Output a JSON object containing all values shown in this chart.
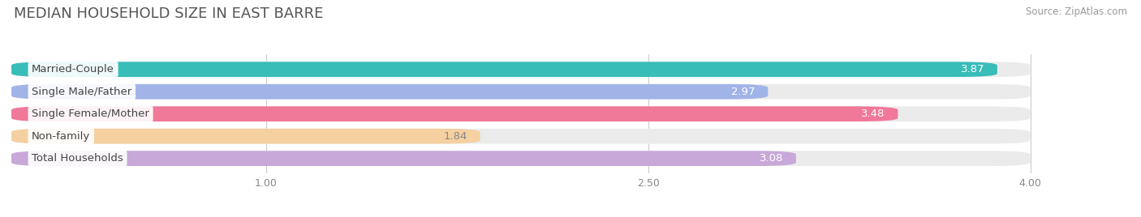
{
  "title": "MEDIAN HOUSEHOLD SIZE IN EAST BARRE",
  "source": "Source: ZipAtlas.com",
  "categories": [
    "Married-Couple",
    "Single Male/Father",
    "Single Female/Mother",
    "Non-family",
    "Total Households"
  ],
  "values": [
    3.87,
    2.97,
    3.48,
    1.84,
    3.08
  ],
  "bar_colors": [
    "#38bdb8",
    "#a0b4e8",
    "#f07898",
    "#f5d0a0",
    "#c8a8d8"
  ],
  "label_colors": [
    "white",
    "white",
    "white",
    "white",
    "white"
  ],
  "value_label_dark": [
    false,
    false,
    false,
    true,
    false
  ],
  "xlim": [
    0,
    4.3
  ],
  "xmin": 0,
  "xmax": 4.0,
  "xticks": [
    1.0,
    2.5,
    4.0
  ],
  "title_fontsize": 13,
  "source_fontsize": 8.5,
  "bar_label_fontsize": 9.5,
  "category_label_fontsize": 9.5,
  "background_color": "#ffffff",
  "bar_bg_color": "#ebebeb"
}
